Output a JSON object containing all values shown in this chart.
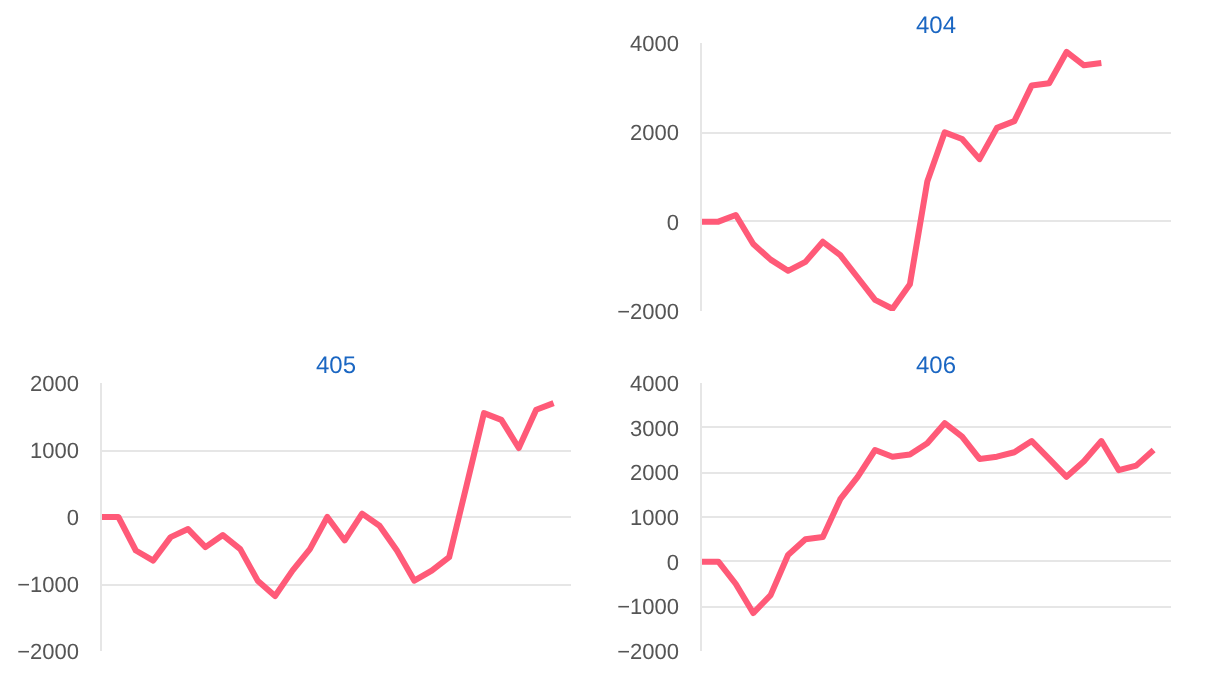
{
  "chart_data": [
    {
      "type": "line",
      "title": "404",
      "categories": [
        null,
        null,
        null,
        null,
        null,
        null,
        null,
        null,
        null,
        null,
        null,
        null,
        null,
        null,
        null,
        null,
        null,
        null,
        null,
        null,
        null,
        null,
        null,
        null,
        null,
        null,
        null,
        null
      ],
      "series": [
        {
          "color": "#ff5a78",
          "values": [
            0,
            0,
            150,
            -500,
            -850,
            -1100,
            -900,
            -450,
            -750,
            -1250,
            -1750,
            -1950,
            -1400,
            900,
            2000,
            1850,
            1400,
            2100,
            2250,
            3050,
            3100,
            3800,
            3500,
            3550,
            null,
            null,
            null,
            null
          ]
        }
      ],
      "ylim": [
        -2000,
        4000
      ],
      "yticks": [
        -2000,
        0,
        2000,
        4000
      ],
      "grid": "y",
      "tick_labels": "y",
      "marker": "none",
      "line_style": "solid"
    },
    {
      "type": "line",
      "title": "405",
      "categories": [
        null,
        null,
        null,
        null,
        null,
        null,
        null,
        null,
        null,
        null,
        null,
        null,
        null,
        null,
        null,
        null,
        null,
        null,
        null,
        null,
        null,
        null,
        null,
        null,
        null,
        null,
        null,
        null
      ],
      "series": [
        {
          "color": "#ff5a78",
          "values": [
            0,
            0,
            -500,
            -650,
            -300,
            -180,
            -450,
            -270,
            -480,
            -950,
            -1180,
            -800,
            -480,
            0,
            -350,
            50,
            -130,
            -500,
            -950,
            -800,
            -600,
            470,
            1550,
            1450,
            1030,
            1600,
            1700,
            null
          ]
        }
      ],
      "ylim": [
        -2000,
        2000
      ],
      "yticks": [
        -2000,
        -1000,
        0,
        1000,
        2000
      ],
      "grid": "y",
      "tick_labels": "y",
      "marker": "none",
      "line_style": "solid"
    },
    {
      "type": "line",
      "title": "406",
      "categories": [
        null,
        null,
        null,
        null,
        null,
        null,
        null,
        null,
        null,
        null,
        null,
        null,
        null,
        null,
        null,
        null,
        null,
        null,
        null,
        null,
        null,
        null,
        null,
        null,
        null,
        null,
        null,
        null
      ],
      "series": [
        {
          "color": "#ff5a78",
          "values": [
            0,
            0,
            -500,
            -1150,
            -750,
            150,
            500,
            550,
            1400,
            1900,
            2500,
            2350,
            2400,
            2650,
            3100,
            2800,
            2300,
            2350,
            2450,
            2700,
            2300,
            1900,
            2250,
            2700,
            2050,
            2150,
            2500,
            null
          ]
        }
      ],
      "ylim": [
        -2000,
        4000
      ],
      "yticks": [
        -2000,
        -1000,
        0,
        1000,
        2000,
        3000,
        4000
      ],
      "grid": "y",
      "tick_labels": "y",
      "marker": "none",
      "line_style": "solid"
    }
  ]
}
